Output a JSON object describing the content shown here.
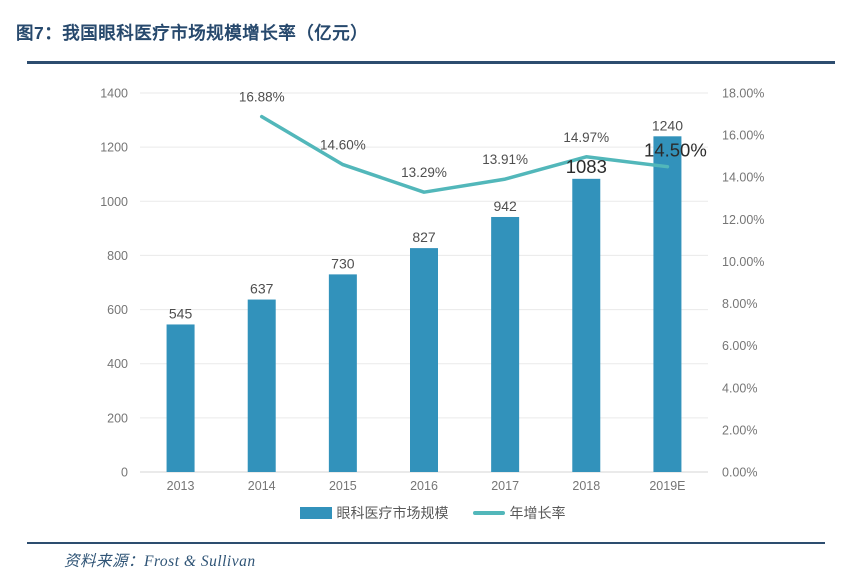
{
  "header": {
    "title": "图7：我国眼科医疗市场规模增长率（亿元）"
  },
  "chart_data": {
    "type": "bar+line",
    "title": "我国眼科医疗市场规模增长率（亿元）",
    "categories": [
      "2013",
      "2014",
      "2015",
      "2016",
      "2017",
      "2018",
      "2019E"
    ],
    "series": [
      {
        "name": "眼科医疗市场规模",
        "type": "bar",
        "axis": "left",
        "values": [
          545,
          637,
          730,
          827,
          942,
          1083,
          1240
        ],
        "labels": [
          "545",
          "637",
          "730",
          "827",
          "942",
          "1083",
          "1240"
        ],
        "color": "#3292bb"
      },
      {
        "name": "年增长率",
        "type": "line",
        "axis": "right",
        "x_start_index": 1,
        "values": [
          16.88,
          14.6,
          13.29,
          13.91,
          14.97,
          14.5
        ],
        "labels": [
          "16.88%",
          "14.60%",
          "13.29%",
          "13.91%",
          "14.97%",
          "14.50%"
        ],
        "color": "#52b7ba"
      }
    ],
    "left_axis": {
      "min": 0,
      "max": 1400,
      "ticks": [
        "1400",
        "1200",
        "1000",
        "800",
        "600",
        "400",
        "200",
        "0"
      ]
    },
    "right_axis": {
      "min": 0,
      "max": 18,
      "ticks": [
        "18.00%",
        "16.00%",
        "14.00%",
        "12.00%",
        "10.00%",
        "8.00%",
        "6.00%",
        "4.00%",
        "2.00%",
        "0.00%"
      ]
    },
    "grid": "horizontal",
    "legend_position": "bottom",
    "emphasized_labels": {
      "bar_indices": [
        5
      ],
      "line_indices": [
        5
      ]
    }
  },
  "footer": {
    "source": "资料来源：Frost & Sullivan"
  }
}
